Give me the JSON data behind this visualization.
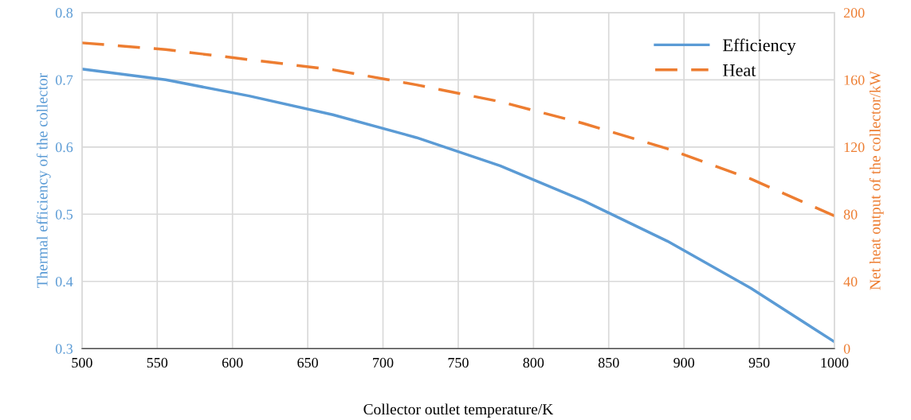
{
  "chart_data": {
    "type": "line",
    "xlabel": "Collector outlet temperature/K",
    "ylabel": "Thermal efficiency of the collector",
    "y2label": "Net heat output of the collector/kW",
    "x": [
      500,
      555.6,
      611.1,
      666.7,
      722.2,
      777.8,
      833.3,
      888.9,
      944.4,
      1000
    ],
    "series": [
      {
        "name": "Efficiency",
        "color": "#5b9bd5",
        "line_style": "solid",
        "values": [
          0.716,
          0.7,
          0.676,
          0.648,
          0.614,
          0.572,
          0.52,
          0.46,
          0.39,
          0.31
        ]
      },
      {
        "name": "Heat",
        "color": "#ed7d31",
        "line_style": "dashed",
        "axis": "y2",
        "values": [
          182,
          178,
          172,
          166,
          157,
          147,
          134,
          119,
          101,
          79
        ]
      }
    ],
    "xlim": [
      500,
      1000
    ],
    "xticks": [
      500,
      550,
      600,
      650,
      700,
      750,
      800,
      850,
      900,
      950,
      1000
    ],
    "ylim": [
      0.3,
      0.8
    ],
    "yticks": [
      0.3,
      0.4,
      0.5,
      0.6,
      0.7,
      0.8
    ],
    "y2lim": [
      0,
      200
    ],
    "y2ticks": [
      0,
      40,
      80,
      120,
      160,
      200
    ],
    "grid": true,
    "legend": "top right",
    "marker": "none"
  }
}
